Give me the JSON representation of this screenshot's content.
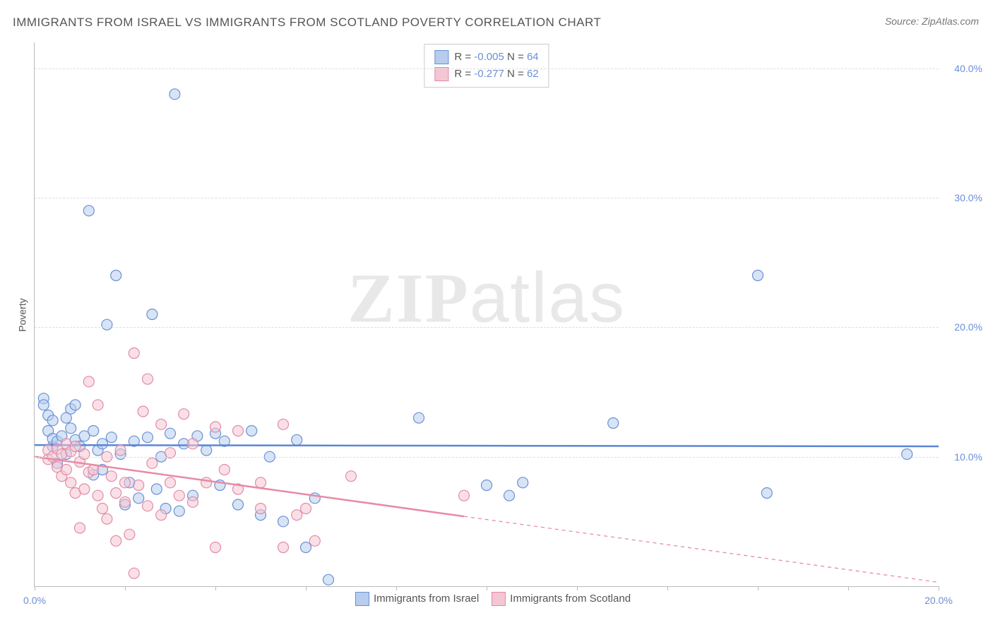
{
  "title": "IMMIGRANTS FROM ISRAEL VS IMMIGRANTS FROM SCOTLAND POVERTY CORRELATION CHART",
  "source": "Source: ZipAtlas.com",
  "y_axis_label": "Poverty",
  "watermark_zip": "ZIP",
  "watermark_atlas": "atlas",
  "chart": {
    "type": "scatter",
    "xlim": [
      0,
      20
    ],
    "ylim": [
      0,
      42
    ],
    "x_ticks": [
      0,
      2,
      4,
      6,
      8,
      10,
      12,
      14,
      16,
      18,
      20
    ],
    "x_tick_labels": {
      "0": "0.0%",
      "20": "20.0%"
    },
    "y_ticks": [
      10,
      20,
      30,
      40
    ],
    "y_tick_labels": [
      "10.0%",
      "20.0%",
      "30.0%",
      "40.0%"
    ],
    "grid_color": "#dddddd",
    "background_color": "#ffffff",
    "axis_color": "#bbbbbb",
    "marker_radius": 7.5,
    "marker_opacity": 0.55
  },
  "stats_legend": [
    {
      "swatch_fill": "#b7cdee",
      "swatch_border": "#6b8fd4",
      "r_label": "R = ",
      "r_value": "-0.005",
      "n_label": "   N = ",
      "n_value": "64"
    },
    {
      "swatch_fill": "#f4c6d3",
      "swatch_border": "#e48aa5",
      "r_label": "R = ",
      "r_value": "-0.277",
      "n_label": "   N = ",
      "n_value": "62"
    }
  ],
  "bottom_legend": [
    {
      "swatch_fill": "#b7cdee",
      "swatch_border": "#6b8fd4",
      "label": "Immigrants from Israel"
    },
    {
      "swatch_fill": "#f4c6d3",
      "swatch_border": "#e48aa5",
      "label": "Immigrants from Scotland"
    }
  ],
  "series": [
    {
      "name": "Immigrants from Israel",
      "color_fill": "#b7cdee",
      "color_stroke": "#6b8fd4",
      "trend": {
        "x1": 0,
        "y1": 10.9,
        "x2": 20,
        "y2": 10.8,
        "color": "#5b86d6",
        "width": 2.5,
        "solid_end_x": 20
      },
      "points": [
        [
          0.2,
          14.5
        ],
        [
          0.2,
          14.0
        ],
        [
          0.3,
          13.2
        ],
        [
          0.3,
          12.0
        ],
        [
          0.4,
          10.8
        ],
        [
          0.4,
          11.4
        ],
        [
          0.5,
          11.2
        ],
        [
          0.5,
          9.5
        ],
        [
          0.6,
          11.6
        ],
        [
          0.7,
          13.0
        ],
        [
          0.7,
          10.2
        ],
        [
          0.8,
          13.7
        ],
        [
          0.8,
          12.2
        ],
        [
          0.9,
          11.3
        ],
        [
          0.9,
          14.0
        ],
        [
          1.0,
          10.8
        ],
        [
          1.1,
          11.6
        ],
        [
          1.2,
          29.0
        ],
        [
          1.3,
          12.0
        ],
        [
          1.3,
          8.6
        ],
        [
          1.4,
          10.5
        ],
        [
          1.5,
          9.0
        ],
        [
          1.5,
          11.0
        ],
        [
          1.6,
          20.2
        ],
        [
          1.7,
          11.5
        ],
        [
          1.8,
          24.0
        ],
        [
          1.9,
          10.2
        ],
        [
          2.0,
          6.3
        ],
        [
          2.1,
          8.0
        ],
        [
          2.2,
          11.2
        ],
        [
          2.3,
          6.8
        ],
        [
          2.5,
          11.5
        ],
        [
          2.6,
          21.0
        ],
        [
          2.7,
          7.5
        ],
        [
          2.8,
          10.0
        ],
        [
          2.9,
          6.0
        ],
        [
          3.0,
          11.8
        ],
        [
          3.1,
          38.0
        ],
        [
          3.2,
          5.8
        ],
        [
          3.3,
          11.0
        ],
        [
          3.5,
          7.0
        ],
        [
          3.6,
          11.6
        ],
        [
          3.8,
          10.5
        ],
        [
          4.0,
          11.8
        ],
        [
          4.1,
          7.8
        ],
        [
          4.2,
          11.2
        ],
        [
          4.5,
          6.3
        ],
        [
          4.8,
          12.0
        ],
        [
          5.0,
          5.5
        ],
        [
          5.2,
          10.0
        ],
        [
          5.5,
          5.0
        ],
        [
          5.8,
          11.3
        ],
        [
          6.0,
          3.0
        ],
        [
          6.2,
          6.8
        ],
        [
          6.5,
          0.5
        ],
        [
          8.5,
          13.0
        ],
        [
          10.0,
          7.8
        ],
        [
          10.5,
          7.0
        ],
        [
          10.8,
          8.0
        ],
        [
          12.8,
          12.6
        ],
        [
          16.0,
          24.0
        ],
        [
          16.2,
          7.2
        ],
        [
          19.3,
          10.2
        ],
        [
          0.4,
          12.8
        ]
      ]
    },
    {
      "name": "Immigrants from Scotland",
      "color_fill": "#f4c6d3",
      "color_stroke": "#e48aa5",
      "trend": {
        "x1": 0,
        "y1": 10.0,
        "x2": 20,
        "y2": 0.3,
        "color": "#e78aa5",
        "width": 2.5,
        "solid_end_x": 9.5
      },
      "points": [
        [
          0.3,
          10.5
        ],
        [
          0.3,
          9.8
        ],
        [
          0.4,
          10.0
        ],
        [
          0.5,
          9.2
        ],
        [
          0.5,
          10.6
        ],
        [
          0.6,
          8.5
        ],
        [
          0.6,
          10.2
        ],
        [
          0.7,
          11.0
        ],
        [
          0.7,
          9.0
        ],
        [
          0.8,
          10.4
        ],
        [
          0.8,
          8.0
        ],
        [
          0.9,
          10.8
        ],
        [
          0.9,
          7.2
        ],
        [
          1.0,
          9.6
        ],
        [
          1.0,
          4.5
        ],
        [
          1.1,
          10.2
        ],
        [
          1.1,
          7.5
        ],
        [
          1.2,
          8.8
        ],
        [
          1.2,
          15.8
        ],
        [
          1.3,
          9.0
        ],
        [
          1.4,
          14.0
        ],
        [
          1.4,
          7.0
        ],
        [
          1.5,
          6.0
        ],
        [
          1.6,
          10.0
        ],
        [
          1.6,
          5.2
        ],
        [
          1.7,
          8.5
        ],
        [
          1.8,
          7.2
        ],
        [
          1.8,
          3.5
        ],
        [
          1.9,
          10.5
        ],
        [
          2.0,
          6.5
        ],
        [
          2.0,
          8.0
        ],
        [
          2.1,
          4.0
        ],
        [
          2.2,
          1.0
        ],
        [
          2.2,
          18.0
        ],
        [
          2.3,
          7.8
        ],
        [
          2.4,
          13.5
        ],
        [
          2.5,
          6.2
        ],
        [
          2.5,
          16.0
        ],
        [
          2.6,
          9.5
        ],
        [
          2.8,
          5.5
        ],
        [
          2.8,
          12.5
        ],
        [
          3.0,
          8.0
        ],
        [
          3.0,
          10.3
        ],
        [
          3.2,
          7.0
        ],
        [
          3.3,
          13.3
        ],
        [
          3.5,
          6.5
        ],
        [
          3.5,
          11.0
        ],
        [
          3.8,
          8.0
        ],
        [
          4.0,
          12.3
        ],
        [
          4.0,
          3.0
        ],
        [
          4.2,
          9.0
        ],
        [
          4.5,
          7.5
        ],
        [
          4.5,
          12.0
        ],
        [
          5.0,
          8.0
        ],
        [
          5.0,
          6.0
        ],
        [
          5.5,
          3.0
        ],
        [
          5.5,
          12.5
        ],
        [
          5.8,
          5.5
        ],
        [
          6.0,
          6.0
        ],
        [
          6.2,
          3.5
        ],
        [
          7.0,
          8.5
        ],
        [
          9.5,
          7.0
        ]
      ]
    }
  ]
}
